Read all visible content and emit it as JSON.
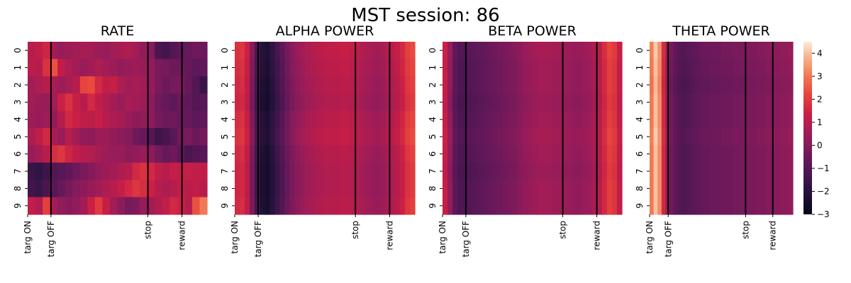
{
  "figure": {
    "title": "MST session: 86"
  },
  "chart_data": {
    "type": "heatmap",
    "colormap": "rocket",
    "colorbar": {
      "min": -3,
      "max": 4.5,
      "ticks": [
        -3,
        -2,
        -1,
        0,
        1,
        2,
        3,
        4
      ],
      "tick_labels": [
        "−3",
        "−2",
        "−1",
        "0",
        "1",
        "2",
        "3",
        "4"
      ]
    },
    "row_labels": [
      "0",
      "1",
      "2",
      "3",
      "4",
      "5",
      "6",
      "7",
      "8",
      "9"
    ],
    "event_labels": [
      "targ ON",
      "targ OFF",
      "stop",
      "reward"
    ],
    "panels": [
      {
        "title": "RATE",
        "event_positions": [
          0,
          0.13,
          0.67,
          0.86
        ],
        "values": [
          [
            1.0,
            1.2,
            1.5,
            0.6,
            0.4,
            0.5,
            0.6,
            0.7,
            0.6,
            0.5,
            0.4,
            0.6,
            0.7,
            0.8,
            0.6,
            0.3,
            0.0,
            -1.2,
            -1.4,
            -1.0,
            -0.8,
            -0.6,
            -0.4,
            -0.5
          ],
          [
            1.1,
            1.0,
            1.8,
            2.4,
            1.2,
            0.8,
            0.6,
            0.4,
            0.6,
            0.8,
            0.6,
            0.5,
            0.3,
            0.4,
            0.5,
            0.4,
            0.3,
            -0.2,
            -0.3,
            -0.4,
            -0.5,
            -0.6,
            -0.8,
            -0.7
          ],
          [
            0.6,
            0.8,
            1.0,
            0.7,
            0.5,
            0.7,
            1.0,
            2.2,
            2.3,
            1.6,
            1.2,
            1.3,
            0.8,
            0.6,
            0.7,
            0.6,
            0.3,
            -0.2,
            -0.5,
            -0.3,
            -0.2,
            -0.6,
            -1.0,
            -1.6
          ],
          [
            0.6,
            0.5,
            0.4,
            0.6,
            1.4,
            1.8,
            1.3,
            1.0,
            1.6,
            1.2,
            0.9,
            0.6,
            0.4,
            0.7,
            0.6,
            0.5,
            0.2,
            -0.4,
            -0.6,
            -0.8,
            -0.5,
            -0.7,
            -1.0,
            -0.9
          ],
          [
            0.5,
            0.4,
            0.5,
            0.3,
            1.0,
            1.6,
            1.4,
            1.2,
            1.1,
            1.3,
            1.0,
            0.8,
            0.7,
            0.4,
            0.2,
            0.3,
            0.2,
            -0.3,
            -0.5,
            -0.4,
            -0.6,
            -0.6,
            -0.8,
            -0.7
          ],
          [
            0.8,
            1.2,
            1.6,
            0.7,
            0.4,
            1.0,
            0.6,
            0.3,
            0.2,
            0.5,
            0.5,
            0.3,
            0.2,
            0.0,
            -0.4,
            -0.6,
            -1.0,
            -1.5,
            -1.3,
            -0.9,
            -0.4,
            -0.2,
            -0.5,
            -0.3
          ],
          [
            0.4,
            0.7,
            1.0,
            1.7,
            1.9,
            1.5,
            1.2,
            1.0,
            0.9,
            0.7,
            0.5,
            0.4,
            0.4,
            0.2,
            0.3,
            0.4,
            0.2,
            -0.3,
            -0.6,
            -0.4,
            -0.8,
            -1.2,
            -1.0,
            -0.9
          ],
          [
            -1.6,
            -1.8,
            -1.5,
            -1.0,
            -0.9,
            -0.7,
            -0.4,
            -0.2,
            0.0,
            0.3,
            0.5,
            0.6,
            0.8,
            1.0,
            1.6,
            1.8,
            1.6,
            1.2,
            1.0,
            1.3,
            1.2,
            1.3,
            1.2,
            1.2
          ],
          [
            -1.4,
            -1.6,
            -1.2,
            -0.9,
            -0.6,
            -0.3,
            0.0,
            0.2,
            0.4,
            0.6,
            0.8,
            1.0,
            1.3,
            1.6,
            1.9,
            1.7,
            1.4,
            1.0,
            0.8,
            1.0,
            1.2,
            1.1,
            1.2,
            1.0
          ],
          [
            1.2,
            0.9,
            2.1,
            0.6,
            0.3,
            0.1,
            0.3,
            0.6,
            1.4,
            2.0,
            1.3,
            0.6,
            0.2,
            -0.3,
            -0.1,
            0.4,
            0.6,
            0.9,
            1.2,
            1.6,
            1.4,
            1.0,
            2.4,
            3.0
          ]
        ]
      },
      {
        "title": "ALPHA POWER",
        "event_positions": [
          0,
          0.13,
          0.67,
          0.86
        ],
        "profile": [
          1.6,
          1.7,
          1.2,
          -0.2,
          -1.4,
          -2.2,
          -2.4,
          -2.0,
          -1.5,
          -1.0,
          -0.5,
          -0.1,
          0.2,
          0.4,
          0.6,
          0.7,
          0.8,
          0.9,
          1.0,
          1.0,
          1.0,
          1.1,
          1.1,
          1.0,
          0.9,
          0.7,
          0.6,
          0.5,
          0.4,
          0.5,
          0.7,
          0.9,
          1.1,
          1.4,
          1.9,
          2.1
        ],
        "row_offsets": [
          0.2,
          0.1,
          0.0,
          -0.1,
          0.1,
          0.2,
          0.0,
          -0.1,
          -0.1,
          0.0
        ]
      },
      {
        "title": "BETA POWER",
        "event_positions": [
          0,
          0.13,
          0.67,
          0.86
        ],
        "profile": [
          1.3,
          0.3,
          -0.8,
          -1.1,
          -1.1,
          -1.0,
          -0.9,
          -0.8,
          -0.7,
          -0.6,
          -0.5,
          -0.4,
          -0.3,
          -0.2,
          -0.1,
          0.1,
          0.3,
          0.4,
          0.5,
          0.6,
          0.6,
          0.6,
          0.5,
          0.5,
          0.4,
          0.4,
          0.3,
          0.3,
          0.4,
          0.5,
          0.7,
          1.0,
          1.6,
          2.1,
          1.9,
          1.2
        ],
        "row_offsets": [
          0.1,
          0.0,
          0.0,
          -0.1,
          0.0,
          0.1,
          0.0,
          -0.1,
          0.0,
          0.0
        ]
      },
      {
        "title": "THETA POWER",
        "event_positions": [
          0,
          0.13,
          0.67,
          0.86
        ],
        "profile": [
          3.0,
          4.0,
          3.3,
          1.6,
          0.4,
          -0.4,
          -0.8,
          -1.0,
          -1.1,
          -1.0,
          -0.9,
          -0.8,
          -0.7,
          -0.6,
          -0.6,
          -0.5,
          -0.5,
          -0.5,
          -0.4,
          -0.4,
          -0.4,
          -0.3,
          -0.3,
          -0.3,
          -0.2,
          -0.2,
          -0.2,
          -0.1,
          -0.1,
          0.0,
          0.0,
          0.1,
          0.1,
          0.2,
          0.2,
          0.3
        ],
        "row_offsets": [
          0.1,
          0.0,
          -0.1,
          0.0,
          0.0,
          0.1,
          0.0,
          0.0,
          0.0,
          0.0
        ]
      }
    ]
  }
}
